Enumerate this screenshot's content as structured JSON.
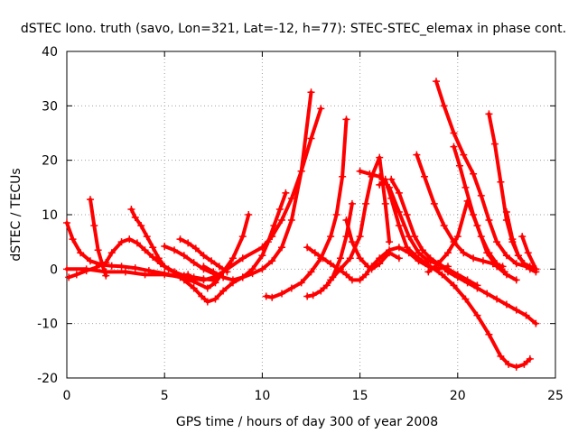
{
  "chart_data": {
    "type": "scatter",
    "title": "dSTEC Iono. truth (savo, Lon=321, Lat=-12, h=77): STEC-STEC_elemax in phase cont.",
    "xlabel": "GPS time / hours of day 300 of year 2008",
    "ylabel": "dSTEC  / TECUs",
    "xlim": [
      0,
      25
    ],
    "ylim": [
      -20,
      40
    ],
    "x_ticks": [
      0,
      5,
      10,
      15,
      20,
      25
    ],
    "y_ticks": [
      -20,
      -10,
      0,
      10,
      20,
      30,
      40
    ],
    "x_tick_labels": [
      "0",
      "5",
      "10",
      "15",
      "20",
      "25"
    ],
    "y_tick_labels": [
      "-20",
      "-10",
      "0",
      "10",
      "20",
      "30",
      "40"
    ],
    "grid": true,
    "marker": "plus",
    "color": "#ff0000",
    "series": [
      {
        "x": [
          0.0,
          0.3,
          0.7,
          1.2,
          1.8,
          2.3,
          2.8,
          3.5,
          4.2,
          5.0,
          5.8,
          6.5,
          7.2,
          7.6,
          8.0,
          8.4
        ],
        "y": [
          8.5,
          5.5,
          3.0,
          1.5,
          0.8,
          0.6,
          0.5,
          0.2,
          -0.3,
          -0.8,
          -1.5,
          -2.3,
          -3.5,
          -2.5,
          -0.5,
          1.0
        ]
      },
      {
        "x": [
          1.2,
          1.4,
          1.6,
          1.8,
          2.0
        ],
        "y": [
          12.8,
          8.0,
          3.5,
          1.0,
          -1.2
        ]
      },
      {
        "x": [
          0.1,
          0.5,
          1.0,
          1.5,
          2.0,
          2.3,
          2.8,
          3.2,
          3.6,
          4.0,
          4.4,
          4.8,
          5.2,
          5.6,
          6.0,
          6.2
        ],
        "y": [
          -1.5,
          -1.0,
          -0.3,
          0.3,
          1.2,
          3.0,
          5.0,
          5.5,
          4.8,
          3.5,
          2.2,
          1.0,
          0.0,
          -0.8,
          -1.2,
          -1.0
        ]
      },
      {
        "x": [
          3.3,
          3.5,
          3.8,
          4.1,
          4.4,
          4.7,
          5.0,
          5.5,
          6.0,
          6.5,
          7.0,
          7.5
        ],
        "y": [
          11.0,
          9.5,
          8.0,
          6.0,
          4.0,
          2.0,
          0.5,
          -0.5,
          -1.2,
          -1.5,
          -1.8,
          -2.0
        ]
      },
      {
        "x": [
          5.8,
          6.2,
          6.6,
          7.0,
          7.4,
          7.8,
          8.2
        ],
        "y": [
          5.5,
          4.8,
          3.8,
          2.5,
          1.5,
          0.5,
          -0.5
        ]
      },
      {
        "x": [
          5.0,
          5.5,
          6.0,
          6.5,
          7.0,
          7.5
        ],
        "y": [
          4.2,
          3.5,
          2.5,
          1.2,
          0.0,
          -0.8
        ]
      },
      {
        "x": [
          6.0,
          6.5,
          6.9,
          7.2,
          7.6,
          8.0,
          8.5,
          9.0,
          9.5,
          10.0,
          10.5,
          11.0,
          11.5,
          12.0,
          12.5
        ],
        "y": [
          -2.0,
          -3.5,
          -5.0,
          -6.0,
          -5.5,
          -4.0,
          -2.5,
          -1.5,
          -0.8,
          0.0,
          1.5,
          4.0,
          9.0,
          18.0,
          32.5
        ]
      },
      {
        "x": [
          0.0,
          1.0,
          2.0,
          3.0,
          4.0,
          5.0,
          6.0,
          7.0,
          7.5,
          8.0,
          9.0,
          10.0,
          10.5,
          11.0,
          11.5,
          12.0,
          12.5,
          13.0
        ],
        "y": [
          0.0,
          0.0,
          -0.5,
          -0.5,
          -1.0,
          -1.0,
          -1.5,
          -2.0,
          -1.5,
          -0.5,
          2.0,
          4.0,
          6.0,
          9.0,
          13.0,
          18.0,
          24.0,
          29.5
        ]
      },
      {
        "x": [
          7.0,
          7.5,
          8.0,
          8.5,
          9.0,
          9.5,
          10.0,
          10.3,
          10.6,
          10.9,
          11.2
        ],
        "y": [
          0.5,
          -0.5,
          -1.5,
          -2.0,
          -1.5,
          0.0,
          2.5,
          5.0,
          8.0,
          11.0,
          14.0
        ]
      },
      {
        "x": [
          7.5,
          8.0,
          8.5,
          9.0,
          9.3
        ],
        "y": [
          -2.0,
          -0.5,
          2.0,
          6.0,
          10.0
        ]
      },
      {
        "x": [
          10.2,
          10.5,
          11.0,
          11.5,
          12.0,
          12.5,
          13.0,
          13.5,
          13.8,
          14.1,
          14.3
        ],
        "y": [
          -5.0,
          -5.2,
          -4.5,
          -3.5,
          -2.5,
          -0.5,
          2.0,
          6.0,
          10.0,
          17.0,
          27.5
        ]
      },
      {
        "x": [
          12.3,
          12.6,
          13.0,
          13.3,
          13.6,
          14.0,
          14.3,
          14.6
        ],
        "y": [
          -5.0,
          -4.8,
          -4.0,
          -3.0,
          -1.5,
          2.0,
          6.0,
          12.0
        ]
      },
      {
        "x": [
          12.3,
          12.7,
          13.1,
          13.5,
          13.9,
          14.3,
          14.6,
          15.0,
          15.3,
          15.6,
          16.0,
          16.5,
          17.0,
          17.5,
          18.0,
          18.5,
          19.0,
          19.5
        ],
        "y": [
          4.0,
          3.0,
          2.0,
          1.0,
          0.0,
          -1.0,
          -2.0,
          -2.0,
          -1.0,
          0.5,
          2.0,
          3.5,
          4.0,
          3.0,
          1.5,
          0.5,
          0.0,
          0.5
        ]
      },
      {
        "x": [
          14.3,
          14.6,
          15.0,
          15.4,
          15.6,
          16.0,
          16.5,
          17.0
        ],
        "y": [
          9.0,
          5.0,
          2.0,
          0.5,
          0.0,
          1.0,
          3.0,
          2.0
        ]
      },
      {
        "x": [
          13.5,
          14.0,
          14.5,
          15.0,
          15.3,
          15.6,
          16.0,
          16.3,
          16.5
        ],
        "y": [
          -2.0,
          0.0,
          2.0,
          6.0,
          12.0,
          17.0,
          20.5,
          12.0,
          5.0
        ]
      },
      {
        "x": [
          15.0,
          15.5,
          16.0,
          16.5,
          17.0,
          17.5,
          18.0,
          18.5,
          19.0,
          19.5,
          20.0,
          20.5,
          21.0
        ],
        "y": [
          18.0,
          17.5,
          17.0,
          15.0,
          10.5,
          6.0,
          3.0,
          1.5,
          1.0,
          0.0,
          -1.0,
          -2.0,
          -3.0
        ]
      },
      {
        "x": [
          16.0,
          16.3,
          16.6,
          17.0,
          17.4,
          18.0,
          18.6,
          19.2,
          19.8,
          20.4,
          21.0,
          21.6,
          22.2,
          22.6,
          23.0,
          23.4,
          23.7
        ],
        "y": [
          15.5,
          16.5,
          13.0,
          8.0,
          4.0,
          2.0,
          0.5,
          -1.0,
          -3.0,
          -5.5,
          -8.5,
          -12.0,
          -16.0,
          -17.5,
          -18.0,
          -17.5,
          -16.5
        ]
      },
      {
        "x": [
          16.6,
          17.0,
          17.4,
          17.8,
          18.2,
          18.6,
          19.0,
          19.5,
          20.0,
          20.5,
          21.0,
          21.5,
          22.0,
          22.5,
          23.0,
          23.5,
          24.0
        ],
        "y": [
          16.5,
          14.0,
          10.0,
          6.0,
          3.5,
          2.0,
          1.0,
          -0.5,
          -1.5,
          -2.5,
          -3.5,
          -4.5,
          -5.5,
          -6.5,
          -7.5,
          -8.5,
          -10.0
        ]
      },
      {
        "x": [
          17.9,
          18.3,
          18.8,
          19.3,
          19.8,
          20.3,
          20.8,
          21.3,
          21.8,
          22.3
        ],
        "y": [
          21.0,
          17.0,
          12.0,
          8.0,
          5.0,
          3.0,
          2.0,
          1.5,
          1.0,
          0.5
        ]
      },
      {
        "x": [
          18.9,
          19.3,
          19.8,
          20.3,
          20.8,
          21.2,
          21.6,
          22.0,
          22.5,
          23.0,
          23.5,
          24.0
        ],
        "y": [
          34.5,
          30.0,
          25.0,
          21.0,
          17.5,
          13.5,
          9.0,
          5.0,
          2.5,
          1.0,
          0.5,
          0.0
        ]
      },
      {
        "x": [
          19.8,
          20.1,
          20.4,
          20.8,
          21.2,
          21.6,
          22.0,
          22.4
        ],
        "y": [
          22.5,
          19.0,
          15.0,
          10.0,
          6.0,
          3.0,
          1.0,
          -0.5
        ]
      },
      {
        "x": [
          21.6,
          21.9,
          22.2,
          22.5,
          22.8,
          23.1,
          23.4,
          23.7,
          24.0
        ],
        "y": [
          28.5,
          23.0,
          16.0,
          9.0,
          5.0,
          2.5,
          1.0,
          0.5,
          0.0
        ]
      },
      {
        "x": [
          22.5,
          22.8,
          23.1,
          23.4,
          23.7,
          24.0
        ],
        "y": [
          10.5,
          5.5,
          2.5,
          1.0,
          0.0,
          -0.5
        ]
      },
      {
        "x": [
          23.3,
          23.6,
          24.0
        ],
        "y": [
          6.0,
          3.0,
          0.0
        ]
      },
      {
        "x": [
          18.5,
          19.0,
          19.5,
          20.0,
          20.5,
          21.0,
          21.5,
          22.0,
          22.5,
          23.0
        ],
        "y": [
          -0.5,
          1.0,
          3.0,
          6.0,
          12.5,
          8.0,
          3.0,
          0.5,
          -1.0,
          -2.0
        ]
      }
    ]
  }
}
